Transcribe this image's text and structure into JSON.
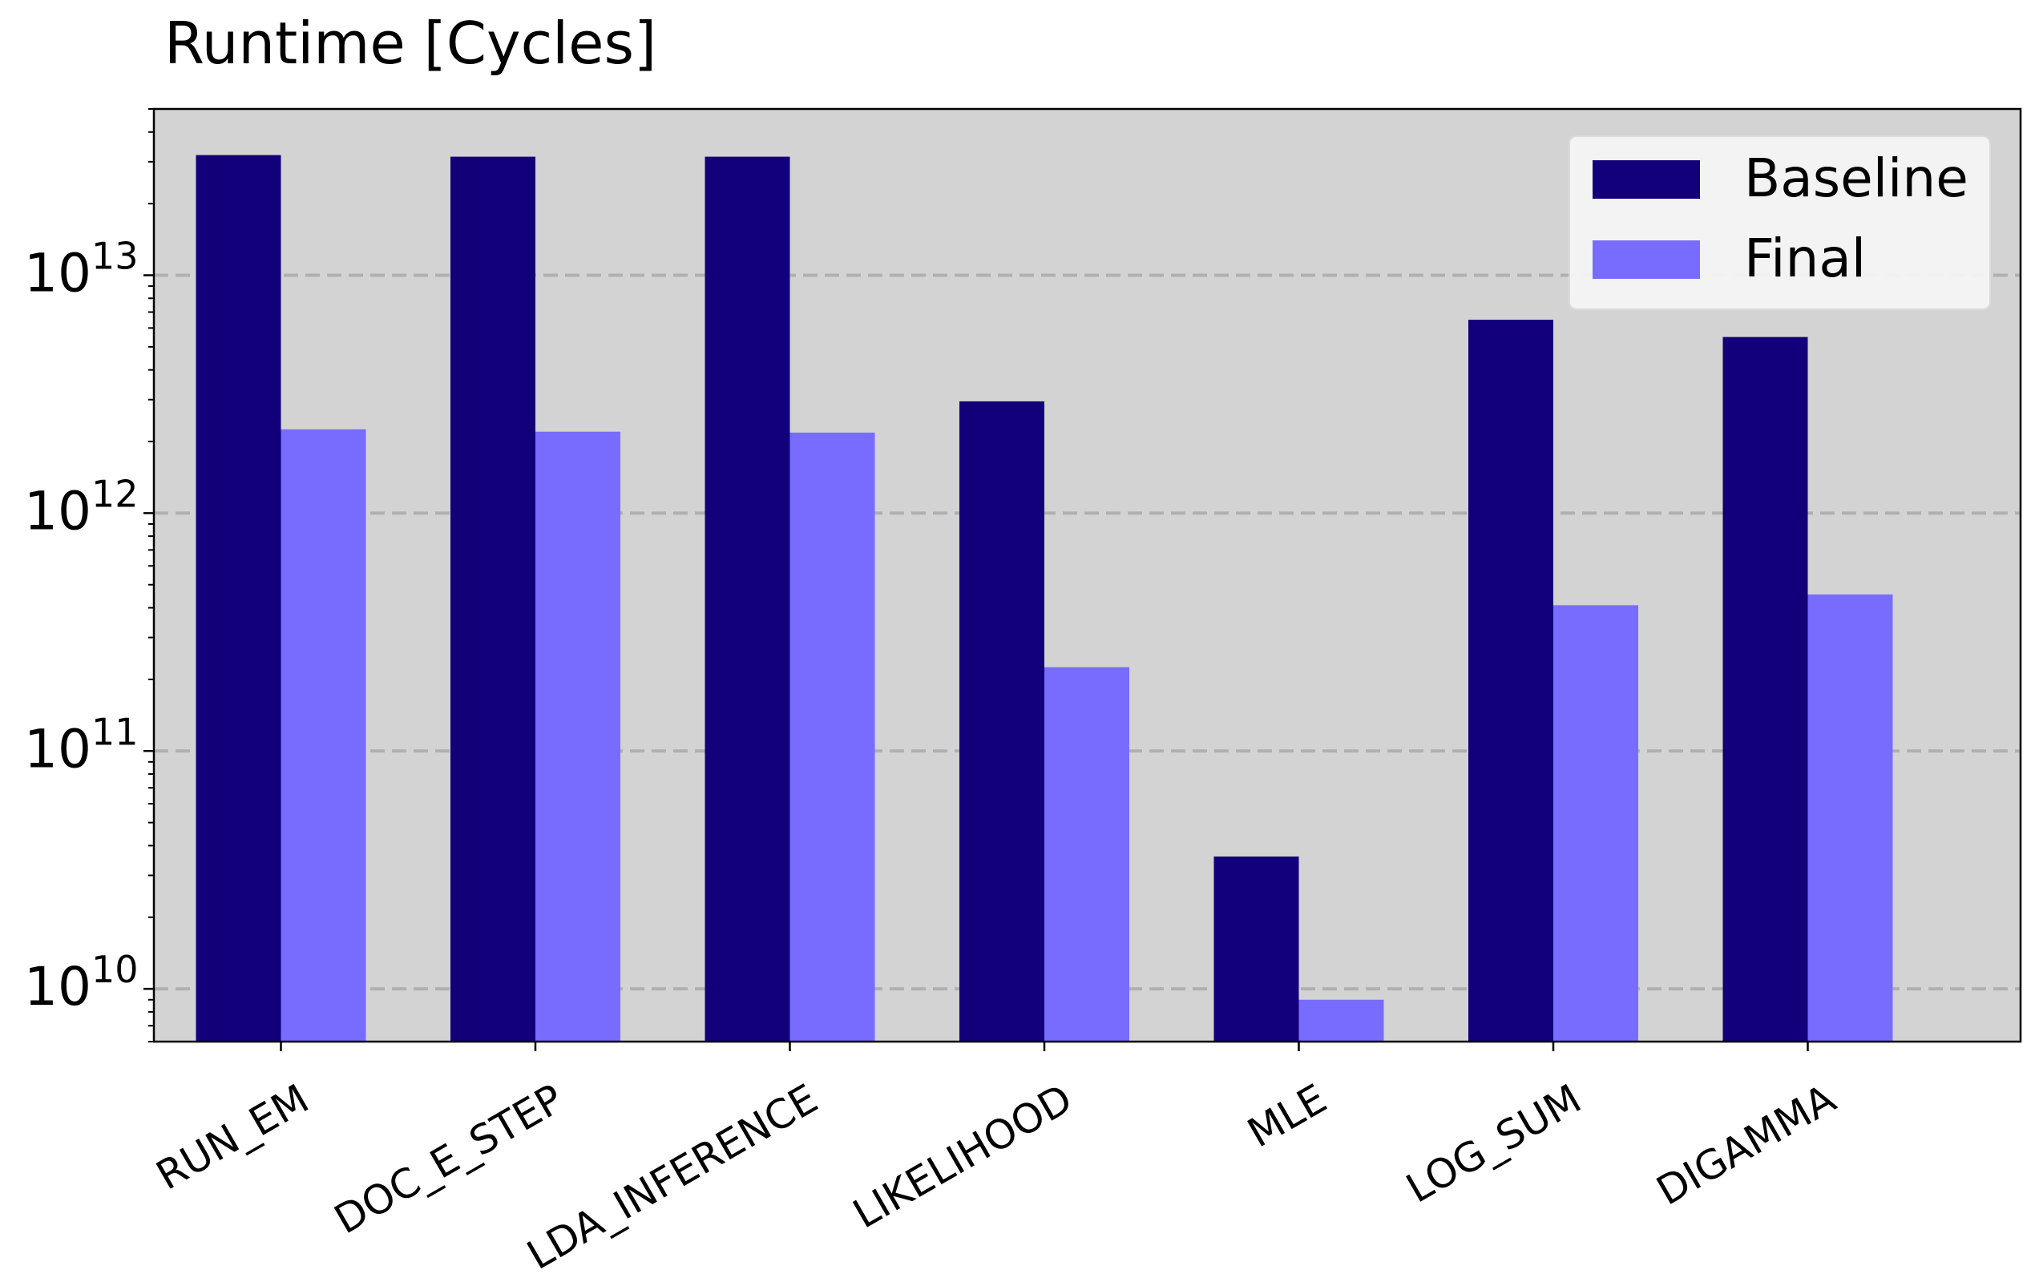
{
  "chart_data": {
    "type": "bar",
    "title": "Runtime [Cycles]",
    "xlabel": "",
    "ylabel": "",
    "yscale": "log",
    "ylim": [
      6000000000.0,
      50000000000000.0
    ],
    "grid": "y-major dashed",
    "legend_position": "top-right",
    "categories": [
      "RUN_EM",
      "DOC_E_STEP",
      "LDA_INFERENCE",
      "LIKELIHOOD",
      "MLE",
      "LOG_SUM",
      "DIGAMMA"
    ],
    "series": [
      {
        "name": "Baseline",
        "color": "#110079",
        "values": [
          32000000000000.0,
          31500000000000.0,
          31500000000000.0,
          2950000000000.0,
          36000000000.0,
          6500000000000.0,
          5500000000000.0
        ]
      },
      {
        "name": "Final",
        "color": "#776cfe",
        "values": [
          2250000000000.0,
          2200000000000.0,
          2180000000000.0,
          225000000000.0,
          9000000000.0,
          410000000000.0,
          455000000000.0
        ]
      }
    ],
    "yticks": [
      {
        "value": 10000000000.0,
        "base": "10",
        "exp": "10"
      },
      {
        "value": 100000000000.0,
        "base": "10",
        "exp": "11"
      },
      {
        "value": 1000000000000.0,
        "base": "10",
        "exp": "12"
      },
      {
        "value": 10000000000000.0,
        "base": "10",
        "exp": "13"
      }
    ],
    "plot_background": "#d3d3d3",
    "grid_color": "#b0b0b0"
  }
}
